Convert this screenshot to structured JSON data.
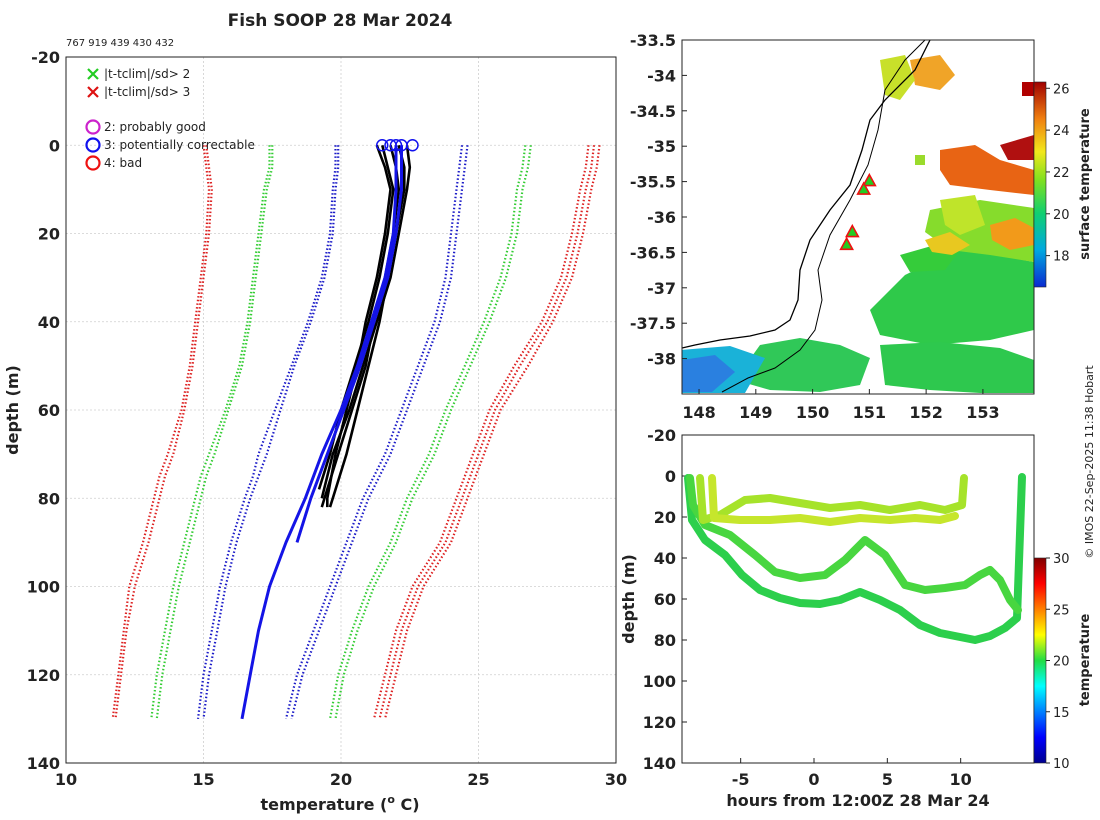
{
  "title": "Fish SOOP 28 Mar 2024",
  "id_line": "767 919 439 430 432",
  "credit": "© IMOS 22-Sep-2025 11:38 Hobart",
  "colors": {
    "clim_red": "#dd2222",
    "clim_green": "#33cc33",
    "clim_blue": "#1c1cc8",
    "profile_black": "#000000",
    "profile_blue": "#1414e6"
  },
  "chart_data": [
    {
      "type": "line",
      "name": "profiles",
      "xlabel": "temperature (",
      "xlabel_sup": "o",
      "xlabel_end": " C)",
      "ylabel": "depth (m)",
      "xlim": [
        10,
        30
      ],
      "ylim": [
        -20,
        140
      ],
      "xticks": [
        "10",
        "15",
        "20",
        "25",
        "30"
      ],
      "yticks": [
        "-20",
        "0",
        "20",
        "40",
        "60",
        "80",
        "100",
        "120",
        "140"
      ],
      "legend": [
        {
          "symbol": "x",
          "color": "#22cc22",
          "label": "|t-tclim|/sd> 2"
        },
        {
          "symbol": "x",
          "color": "#dd1111",
          "label": "|t-tclim|/sd> 3"
        },
        {
          "symbol": "o",
          "color": "#cc22cc",
          "label": "2: probably good"
        },
        {
          "symbol": "o",
          "color": "#1111ee",
          "label": "3: potentially correctable"
        },
        {
          "symbol": "o",
          "color": "#ee1111",
          "label": "4: bad"
        }
      ],
      "clim_depths": [
        0,
        5,
        10,
        20,
        30,
        40,
        50,
        60,
        70,
        75,
        80,
        90,
        100,
        110,
        120,
        130
      ],
      "series": [
        {
          "name": "clim -3sd A",
          "style": "red",
          "values": [
            15.0,
            15.1,
            15.2,
            15.1,
            14.9,
            14.7,
            14.5,
            14.2,
            13.7,
            13.4,
            13.2,
            12.8,
            12.3,
            12.1,
            11.9,
            11.7
          ]
        },
        {
          "name": "clim -3sd B",
          "style": "red",
          "values": [
            15.1,
            15.2,
            15.3,
            15.2,
            15.0,
            14.8,
            14.6,
            14.3,
            13.9,
            13.6,
            13.4,
            13.0,
            12.5,
            12.2,
            12.0,
            11.8
          ]
        },
        {
          "name": "clim -2sd A",
          "style": "green",
          "values": [
            17.4,
            17.4,
            17.2,
            17.0,
            16.8,
            16.6,
            16.3,
            15.8,
            15.2,
            14.9,
            14.7,
            14.3,
            13.9,
            13.6,
            13.3,
            13.1
          ]
        },
        {
          "name": "clim -2sd B",
          "style": "green",
          "values": [
            17.5,
            17.5,
            17.3,
            17.1,
            16.9,
            16.7,
            16.4,
            15.9,
            15.4,
            15.1,
            14.9,
            14.5,
            14.1,
            13.8,
            13.5,
            13.3
          ]
        },
        {
          "name": "clim -1sd A",
          "style": "blue",
          "values": [
            19.8,
            19.8,
            19.7,
            19.6,
            19.3,
            18.8,
            18.2,
            17.6,
            17.0,
            16.8,
            16.5,
            16.0,
            15.6,
            15.3,
            15.0,
            14.8
          ]
        },
        {
          "name": "clim -1sd B",
          "style": "blue",
          "values": [
            19.9,
            19.9,
            19.8,
            19.7,
            19.4,
            18.9,
            18.3,
            17.8,
            17.3,
            17.0,
            16.7,
            16.2,
            15.8,
            15.5,
            15.2,
            15.0
          ]
        },
        {
          "name": "clim +1sd A",
          "style": "blue",
          "values": [
            24.4,
            24.3,
            24.2,
            24.0,
            23.8,
            23.4,
            22.8,
            22.2,
            21.6,
            21.2,
            20.8,
            20.2,
            19.6,
            19.0,
            18.4,
            18.0
          ]
        },
        {
          "name": "clim +1sd B",
          "style": "blue",
          "values": [
            24.6,
            24.5,
            24.4,
            24.2,
            24.0,
            23.6,
            23.0,
            22.4,
            21.8,
            21.4,
            21.0,
            20.4,
            19.8,
            19.2,
            18.6,
            18.2
          ]
        },
        {
          "name": "clim +2sd A",
          "style": "green",
          "values": [
            26.7,
            26.6,
            26.4,
            26.2,
            25.8,
            25.2,
            24.5,
            23.8,
            23.2,
            22.8,
            22.4,
            21.8,
            21.0,
            20.4,
            19.9,
            19.6
          ]
        },
        {
          "name": "clim +2sd B",
          "style": "green",
          "values": [
            26.9,
            26.8,
            26.6,
            26.4,
            26.0,
            25.4,
            24.7,
            24.0,
            23.4,
            23.0,
            22.6,
            22.0,
            21.2,
            20.6,
            20.1,
            19.8
          ]
        },
        {
          "name": "clim +3sd A",
          "style": "red",
          "values": [
            29.0,
            28.9,
            28.7,
            28.4,
            28.0,
            27.3,
            26.3,
            25.4,
            24.8,
            24.5,
            24.2,
            23.6,
            22.6,
            22.0,
            21.6,
            21.2
          ]
        },
        {
          "name": "clim +3sd B",
          "style": "red",
          "values": [
            29.2,
            29.1,
            28.9,
            28.6,
            28.2,
            27.5,
            26.5,
            25.6,
            25.0,
            24.7,
            24.4,
            23.8,
            22.8,
            22.2,
            21.8,
            21.4
          ]
        },
        {
          "name": "clim +3sd C",
          "style": "red",
          "values": [
            29.4,
            29.3,
            29.1,
            28.8,
            28.4,
            27.7,
            26.8,
            25.8,
            25.2,
            24.9,
            24.6,
            24.0,
            23.0,
            22.4,
            22.0,
            21.6
          ]
        },
        {
          "name": "profile 1",
          "style": "black",
          "depths": [
            0,
            5,
            10,
            20,
            30,
            40,
            50,
            60,
            70,
            80,
            82
          ],
          "values": [
            21.3,
            21.6,
            21.8,
            21.6,
            21.3,
            20.9,
            20.6,
            20.2,
            19.8,
            19.5,
            19.5
          ]
        },
        {
          "name": "profile 2",
          "style": "black",
          "depths": [
            0,
            5,
            10,
            20,
            30,
            40,
            50,
            60,
            70,
            80,
            82
          ],
          "values": [
            21.8,
            22.0,
            22.1,
            21.9,
            21.6,
            21.2,
            20.9,
            20.4,
            19.9,
            19.4,
            19.3
          ]
        },
        {
          "name": "profile 3",
          "style": "black",
          "depths": [
            0,
            5,
            10,
            20,
            30,
            40,
            50,
            60,
            70,
            80,
            82
          ],
          "values": [
            22.1,
            22.3,
            22.3,
            22.0,
            21.7,
            21.4,
            21.0,
            20.6,
            20.2,
            19.7,
            19.6
          ]
        },
        {
          "name": "profile 4",
          "style": "black",
          "depths": [
            0,
            5,
            10,
            20,
            30,
            40,
            50,
            60,
            70,
            78
          ],
          "values": [
            21.5,
            21.7,
            21.9,
            21.7,
            21.4,
            21.0,
            20.5,
            20.0,
            19.6,
            19.2
          ]
        },
        {
          "name": "profile 5",
          "style": "black",
          "depths": [
            0,
            5,
            10,
            20,
            30,
            40,
            50,
            60,
            70,
            80
          ],
          "values": [
            22.4,
            22.5,
            22.4,
            22.1,
            21.8,
            21.3,
            20.8,
            20.3,
            19.7,
            19.3
          ]
        },
        {
          "name": "profile 6",
          "style": "blue",
          "depths": [
            0,
            10,
            20,
            30,
            40,
            50,
            60,
            70,
            80,
            90,
            100,
            110,
            120,
            130
          ],
          "values": [
            22.0,
            22.0,
            21.9,
            21.6,
            21.1,
            20.6,
            20.0,
            19.3,
            18.7,
            18.0,
            17.4,
            17.0,
            16.7,
            16.4
          ]
        },
        {
          "name": "profile 7",
          "style": "blue",
          "depths": [
            0,
            10,
            20,
            30,
            40,
            50,
            60,
            70,
            80,
            90
          ],
          "values": [
            22.2,
            22.2,
            22.0,
            21.7,
            21.2,
            20.7,
            20.1,
            19.5,
            18.9,
            18.4
          ]
        }
      ],
      "qc_markers_x": [
        21.5,
        21.8,
        22.0,
        22.2,
        22.6
      ]
    },
    {
      "type": "heatmap",
      "name": "surface temperature map",
      "xticks": [
        "148",
        "149",
        "150",
        "151",
        "152",
        "153"
      ],
      "yticks": [
        "-33.5",
        "-34",
        "-34.5",
        "-35",
        "-35.5",
        "-36",
        "-36.5",
        "-37",
        "-37.5",
        "-38"
      ],
      "lon_range": [
        147.7,
        153.9
      ],
      "lat_range": [
        -38.5,
        -33.5
      ],
      "colorbar_label": "surface temperature",
      "colorbar_ticks": [
        "18",
        "20",
        "22",
        "24",
        "26"
      ],
      "colorbar_range": [
        16.5,
        26.3
      ],
      "drop_positions": [
        {
          "lon": 151.0,
          "lat": -35.5
        },
        {
          "lon": 150.9,
          "lat": -35.62
        },
        {
          "lon": 150.7,
          "lat": -36.22
        },
        {
          "lon": 150.6,
          "lat": -36.4
        }
      ]
    },
    {
      "type": "scatter",
      "name": "depth vs time",
      "xlabel": "hours from 12:00Z 28 Mar 24",
      "ylabel": "depth (m)",
      "xlim": [
        -9,
        15
      ],
      "ylim": [
        -20,
        140
      ],
      "xticks": [
        "-5",
        "0",
        "5",
        "10"
      ],
      "yticks": [
        "-20",
        "0",
        "20",
        "40",
        "60",
        "80",
        "100",
        "120",
        "140"
      ],
      "colorbar_label": "temperature",
      "colorbar_ticks": [
        "10",
        "15",
        "20",
        "25",
        "30"
      ],
      "colorbar_range": [
        10,
        30
      ]
    }
  ]
}
